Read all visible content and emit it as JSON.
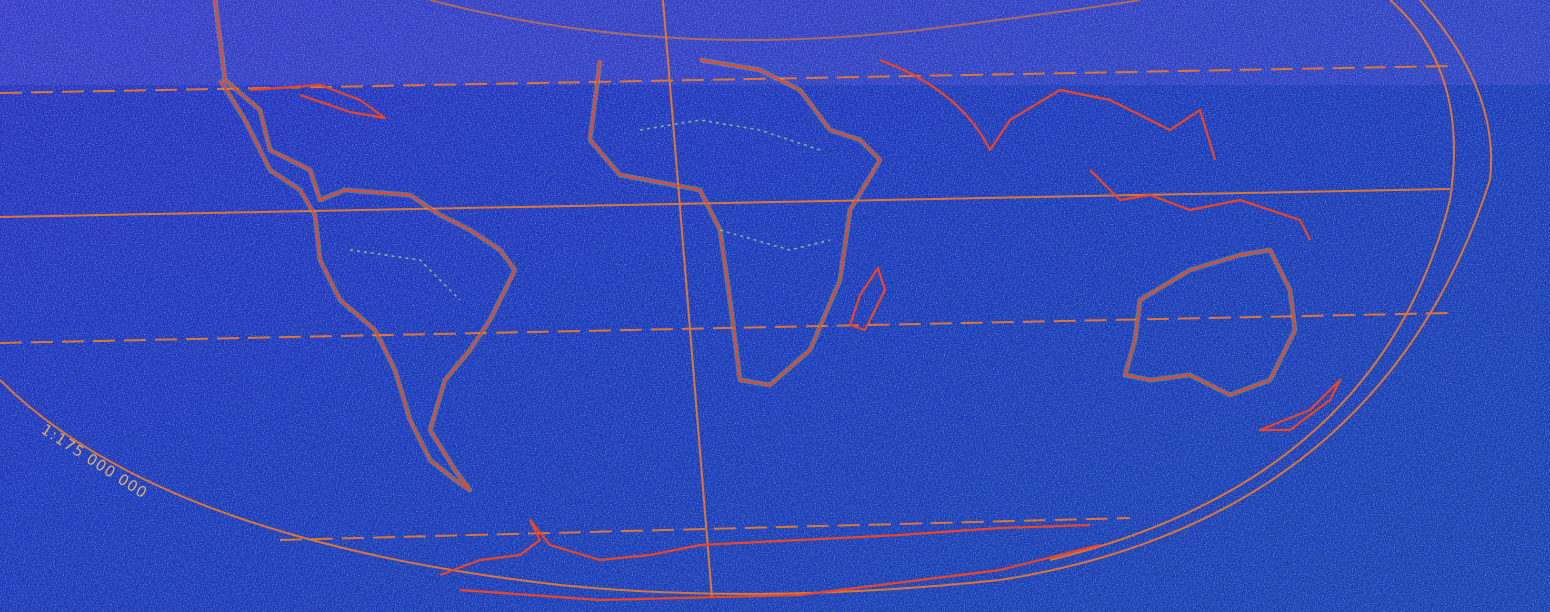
{
  "map": {
    "scale": "1:175 000 000"
  }
}
